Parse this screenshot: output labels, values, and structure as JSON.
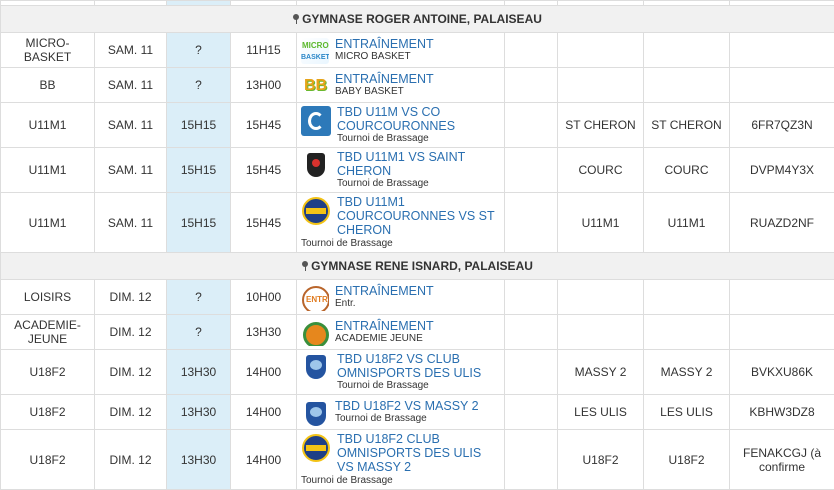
{
  "venues": [
    {
      "name": "GYMNASE ROGER ANTOINE, PALAISEAU",
      "rows": [
        {
          "category": "MICRO-BASKET",
          "date": "SAM. 11",
          "meet": "?",
          "time": "11H15",
          "logo": "micro-basket-logo",
          "title": "ENTRAÎNEMENT",
          "subtitle": "MICRO BASKET",
          "home": "",
          "away": "",
          "code": ""
        },
        {
          "category": "BB",
          "date": "SAM. 11",
          "meet": "?",
          "time": "13H00",
          "logo": "baby-basket-logo",
          "title": "ENTRAÎNEMENT",
          "subtitle": "BABY BASKET",
          "home": "",
          "away": "",
          "code": ""
        },
        {
          "category": "U11M1",
          "date": "SAM. 11",
          "meet": "15H15",
          "time": "15H45",
          "logo": "club-blue-logo",
          "title": "TBD U11M VS CO COURCOURONNES",
          "subtitle": "Tournoi de Brassage",
          "home": "ST CHERON",
          "away": "ST CHERON",
          "code": "6FR7QZ3N"
        },
        {
          "category": "U11M1",
          "date": "SAM. 11",
          "meet": "15H15",
          "time": "15H45",
          "logo": "saint-cheron-logo",
          "title": "TBD U11M1 VS SAINT CHERON",
          "subtitle": "Tournoi de Brassage",
          "home": "COURC",
          "away": "COURC",
          "code": "DVPM4Y3X"
        },
        {
          "category": "U11M1",
          "date": "SAM. 11",
          "meet": "15H15",
          "time": "15H45",
          "logo": "courcouronnes-logo",
          "title": "TBD U11M1 COURCOURONNES VS ST CHERON",
          "subtitle": "Tournoi de Brassage",
          "home": "U11M1",
          "away": "U11M1",
          "code": "RUAZD2NF"
        }
      ]
    },
    {
      "name": "GYMNASE RENE ISNARD, PALAISEAU",
      "rows": [
        {
          "category": "LOISIRS",
          "date": "DIM. 12",
          "meet": "?",
          "time": "10H00",
          "logo": "entr-logo",
          "title": "ENTRAÎNEMENT",
          "subtitle": "Entr.",
          "home": "",
          "away": "",
          "code": ""
        },
        {
          "category": "ACADEMIE-JEUNE",
          "date": "DIM. 12",
          "meet": "?",
          "time": "13H30",
          "logo": "academie-logo",
          "title": "ENTRAÎNEMENT",
          "subtitle": "ACADEMIE JEUNE",
          "home": "",
          "away": "",
          "code": ""
        },
        {
          "category": "U18F2",
          "date": "DIM. 12",
          "meet": "13H30",
          "time": "14H00",
          "logo": "massy-logo",
          "title": "TBD U18F2 VS CLUB OMNISPORTS DES ULIS",
          "subtitle": "Tournoi de Brassage",
          "home": "MASSY 2",
          "away": "MASSY 2",
          "code": "BVKXU86K"
        },
        {
          "category": "U18F2",
          "date": "DIM. 12",
          "meet": "13H30",
          "time": "14H00",
          "logo": "massy-logo",
          "title": "TBD U18F2 VS MASSY 2",
          "subtitle": "Tournoi de Brassage",
          "home": "LES ULIS",
          "away": "LES ULIS",
          "code": "KBHW3DZ8"
        },
        {
          "category": "U18F2",
          "date": "DIM. 12",
          "meet": "13H30",
          "time": "14H00",
          "logo": "courcouronnes-logo",
          "title": "TBD U18F2 CLUB OMNISPORTS DES ULIS VS MASSY 2",
          "subtitle": "Tournoi de Brassage",
          "home": "U18F2",
          "away": "U18F2",
          "code": "FENAKCGJ (à confirme"
        }
      ]
    }
  ]
}
